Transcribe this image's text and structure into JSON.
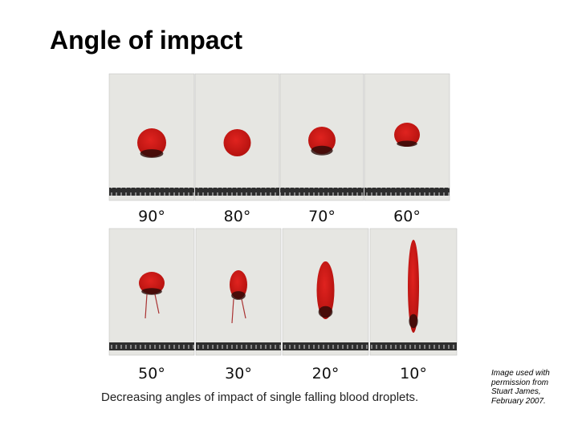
{
  "title": "Angle of impact",
  "panels": [
    {
      "label": "90°"
    },
    {
      "label": "80°"
    },
    {
      "label": "70°"
    },
    {
      "label": "60°"
    },
    {
      "label": "50°"
    },
    {
      "label": "30°"
    },
    {
      "label": "20°"
    },
    {
      "label": "10°"
    }
  ],
  "caption": "Decreasing angles of impact of single falling blood droplets.",
  "credit": [
    "Image used with",
    "permission from",
    "Stuart James,",
    "February 2007."
  ]
}
